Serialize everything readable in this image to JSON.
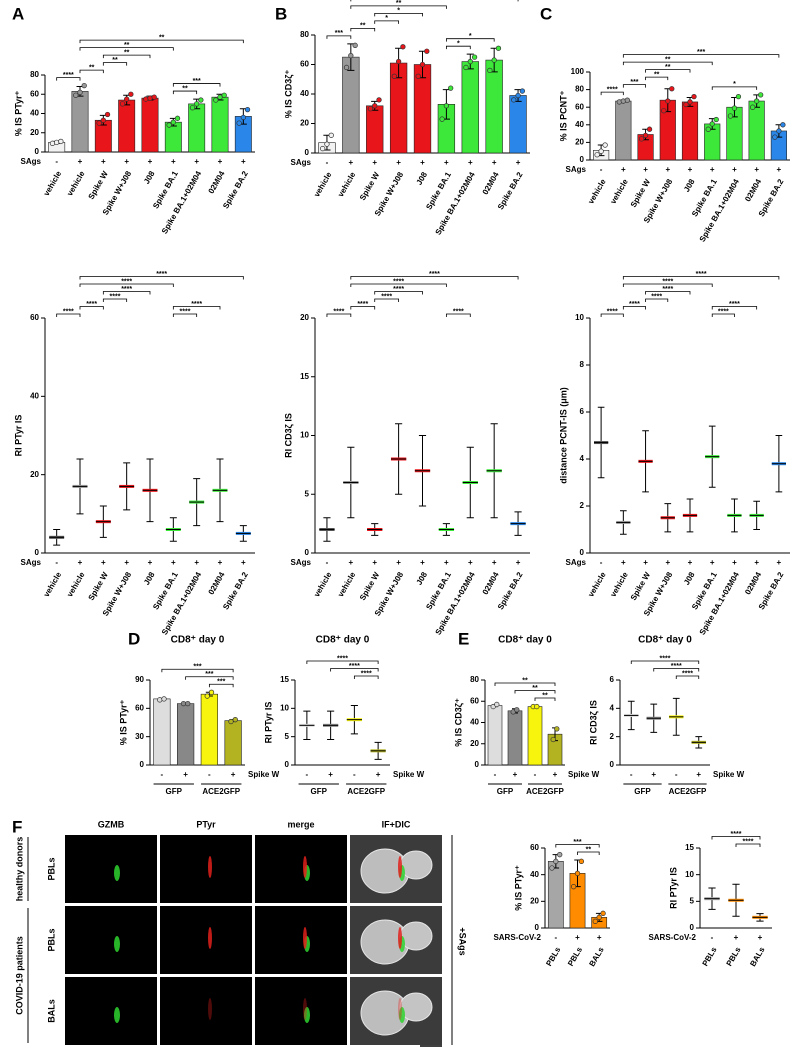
{
  "panel_labels": [
    "A",
    "B",
    "C",
    "D",
    "E",
    "F"
  ],
  "chart_data": [
    {
      "type": "bar",
      "ylabel": "% IS PTyr⁺",
      "ylim": [
        0,
        80
      ],
      "yticks": [
        0,
        20,
        40,
        60,
        80
      ],
      "condition": {
        "label": "SAgs",
        "position": "left",
        "values": [
          "-",
          "+",
          "+",
          "+",
          "+",
          "+",
          "+",
          "+",
          "+"
        ]
      },
      "categories": [
        "vehicle",
        "vehicle",
        "Spike W",
        "Spike W+J08",
        "J08",
        "Spike BA.1",
        "Spike BA.1+02M04",
        "02M04",
        "Spike BA.2"
      ],
      "colors": [
        "#f2f2f2",
        "#999999",
        "#e8161b",
        "#e8161b",
        "#e8161b",
        "#3ee83a",
        "#3ee83a",
        "#3ee83a",
        "#2a86e8"
      ],
      "values": [
        10,
        63,
        33,
        54,
        56,
        31,
        50,
        57,
        37
      ],
      "errors": [
        1,
        5,
        5,
        5,
        2,
        4,
        5,
        3,
        8
      ],
      "points": [
        [
          9,
          10,
          11
        ],
        [
          59,
          62,
          69
        ],
        [
          30,
          33,
          39
        ],
        [
          50,
          55,
          60
        ],
        [
          55,
          56,
          57
        ],
        [
          28,
          31,
          35
        ],
        [
          46,
          50,
          54
        ],
        [
          54,
          57,
          59
        ],
        [
          30,
          36,
          44
        ]
      ],
      "brackets": [
        {
          "from": 0,
          "to": 1,
          "label": "****"
        },
        {
          "from": 1,
          "to": 2,
          "label": "**"
        },
        {
          "from": 1,
          "to": 5,
          "label": "**"
        },
        {
          "from": 1,
          "to": 8,
          "label": "**"
        },
        {
          "from": 2,
          "to": 3,
          "label": "**"
        },
        {
          "from": 2,
          "to": 4,
          "label": "**"
        },
        {
          "from": 5,
          "to": 6,
          "label": "**"
        },
        {
          "from": 5,
          "to": 7,
          "label": "***"
        }
      ]
    },
    {
      "type": "bar",
      "ylabel": "% IS CD3ζ⁺",
      "ylim": [
        0,
        80
      ],
      "yticks": [
        0,
        20,
        40,
        60,
        80
      ],
      "condition": {
        "label": "SAgs",
        "position": "left",
        "values": [
          "-",
          "+",
          "+",
          "+",
          "+",
          "+",
          "+",
          "+",
          "+"
        ]
      },
      "categories": [
        "vehicle",
        "vehicle",
        "Spike W",
        "Spike W+J08",
        "J08",
        "Spike BA.1",
        "Spike BA.1+02M04",
        "02M04",
        "Spike BA.2"
      ],
      "colors": [
        "#f2f2f2",
        "#999999",
        "#e8161b",
        "#e8161b",
        "#e8161b",
        "#3ee83a",
        "#3ee83a",
        "#3ee83a",
        "#2a86e8"
      ],
      "values": [
        7,
        65,
        32,
        61,
        60,
        33,
        62,
        63,
        39
      ],
      "errors": [
        5,
        9,
        3,
        10,
        9,
        10,
        5,
        8,
        4
      ],
      "points": [
        [
          3,
          6,
          12
        ],
        [
          58,
          66,
          73
        ],
        [
          30,
          32,
          36
        ],
        [
          52,
          62,
          72
        ],
        [
          52,
          60,
          69
        ],
        [
          23,
          32,
          44
        ],
        [
          58,
          62,
          65
        ],
        [
          56,
          63,
          71
        ],
        [
          36,
          39,
          42
        ]
      ],
      "brackets": [
        {
          "from": 0,
          "to": 1,
          "label": "***"
        },
        {
          "from": 1,
          "to": 2,
          "label": "**"
        },
        {
          "from": 1,
          "to": 5,
          "label": "**"
        },
        {
          "from": 1,
          "to": 8,
          "label": "*"
        },
        {
          "from": 2,
          "to": 3,
          "label": "*"
        },
        {
          "from": 2,
          "to": 4,
          "label": "*"
        },
        {
          "from": 5,
          "to": 6,
          "label": "*"
        },
        {
          "from": 5,
          "to": 7,
          "label": "*"
        }
      ]
    },
    {
      "type": "bar",
      "ylabel": "% IS PCNT⁺",
      "ylim": [
        0,
        100
      ],
      "yticks": [
        0,
        20,
        40,
        60,
        80,
        100
      ],
      "condition": {
        "label": "SAgs",
        "position": "left",
        "values": [
          "-",
          "+",
          "+",
          "+",
          "+",
          "+",
          "+",
          "+",
          "+"
        ]
      },
      "categories": [
        "vehicle",
        "vehicle",
        "Spike W",
        "Spike W+J08",
        "J08",
        "Spike BA.1",
        "Spike BA.1+02M04",
        "02M04",
        "Spike BA.2"
      ],
      "colors": [
        "#f2f2f2",
        "#999999",
        "#e8161b",
        "#e8161b",
        "#e8161b",
        "#3ee83a",
        "#3ee83a",
        "#3ee83a",
        "#2a86e8"
      ],
      "values": [
        11,
        67,
        29,
        68,
        66,
        41,
        60,
        67,
        33
      ],
      "errors": [
        6,
        1,
        6,
        13,
        5,
        6,
        11,
        7,
        7
      ],
      "points": [
        [
          6,
          10,
          17
        ],
        [
          66,
          67,
          68
        ],
        [
          24,
          28,
          35
        ],
        [
          56,
          67,
          81
        ],
        [
          63,
          66,
          72
        ],
        [
          35,
          41,
          46
        ],
        [
          50,
          59,
          72
        ],
        [
          60,
          67,
          74
        ],
        [
          26,
          33,
          40
        ]
      ],
      "brackets": [
        {
          "from": 0,
          "to": 1,
          "label": "****"
        },
        {
          "from": 1,
          "to": 2,
          "label": "***"
        },
        {
          "from": 1,
          "to": 5,
          "label": "**"
        },
        {
          "from": 1,
          "to": 8,
          "label": "***"
        },
        {
          "from": 2,
          "to": 3,
          "label": "**"
        },
        {
          "from": 2,
          "to": 4,
          "label": "**"
        },
        {
          "from": 5,
          "to": 7,
          "label": "*"
        }
      ]
    },
    {
      "type": "dot",
      "ylabel": "RI PTyr IS",
      "ylim": [
        0,
        60
      ],
      "yticks": [
        0,
        20,
        40,
        60
      ],
      "condition": {
        "label": "SAgs",
        "position": "left",
        "values": [
          "-",
          "+",
          "+",
          "+",
          "+",
          "+",
          "+",
          "+",
          "+"
        ]
      },
      "categories": [
        "vehicle",
        "vehicle",
        "Spike W",
        "Spike W+J08",
        "J08",
        "Spike BA.1",
        "Spike BA.1+02M04",
        "02M04",
        "Spike BA.2"
      ],
      "colors": [
        "#f2f2f2",
        "#999999",
        "#e8161b",
        "#e8161b",
        "#e8161b",
        "#3ee83a",
        "#3ee83a",
        "#3ee83a",
        "#2a86e8"
      ],
      "values": [
        4,
        17,
        8,
        17,
        16,
        6,
        13,
        16,
        5
      ],
      "errors": [
        2,
        7,
        4,
        6,
        8,
        3,
        6,
        8,
        2
      ],
      "brackets": [
        {
          "from": 0,
          "to": 1,
          "label": "****"
        },
        {
          "from": 1,
          "to": 2,
          "label": "****"
        },
        {
          "from": 1,
          "to": 5,
          "label": "****"
        },
        {
          "from": 1,
          "to": 8,
          "label": "****"
        },
        {
          "from": 2,
          "to": 3,
          "label": "****"
        },
        {
          "from": 2,
          "to": 4,
          "label": "****"
        },
        {
          "from": 5,
          "to": 6,
          "label": "****"
        },
        {
          "from": 5,
          "to": 7,
          "label": "****"
        }
      ]
    },
    {
      "type": "dot",
      "ylabel": "RI CD3ζ IS",
      "ylim": [
        0,
        20
      ],
      "yticks": [
        0,
        5,
        10,
        15,
        20
      ],
      "condition": {
        "label": "SAgs",
        "position": "left",
        "values": [
          "-",
          "+",
          "+",
          "+",
          "+",
          "+",
          "+",
          "+",
          "+"
        ]
      },
      "categories": [
        "vehicle",
        "vehicle",
        "Spike W",
        "Spike W+J08",
        "J08",
        "Spike BA.1",
        "Spike BA.1+02M04",
        "02M04",
        "Spike BA.2"
      ],
      "colors": [
        "#f2f2f2",
        "#999999",
        "#e8161b",
        "#e8161b",
        "#e8161b",
        "#3ee83a",
        "#3ee83a",
        "#3ee83a",
        "#2a86e8"
      ],
      "values": [
        2,
        6,
        2,
        8,
        7,
        2,
        6,
        7,
        2.5
      ],
      "errors": [
        1,
        3,
        0.5,
        3,
        3,
        0.5,
        3,
        4,
        1
      ],
      "brackets": [
        {
          "from": 0,
          "to": 1,
          "label": "****"
        },
        {
          "from": 1,
          "to": 2,
          "label": "****"
        },
        {
          "from": 1,
          "to": 5,
          "label": "****"
        },
        {
          "from": 1,
          "to": 8,
          "label": "****"
        },
        {
          "from": 2,
          "to": 3,
          "label": "****"
        },
        {
          "from": 2,
          "to": 4,
          "label": "****"
        },
        {
          "from": 5,
          "to": 6,
          "label": "****"
        }
      ]
    },
    {
      "type": "dot",
      "ylabel": "distance PCNT-IS (μm)",
      "ylim": [
        0,
        10
      ],
      "yticks": [
        0,
        2,
        4,
        6,
        8,
        10
      ],
      "condition": {
        "label": "SAgs",
        "position": "left",
        "values": [
          "-",
          "+",
          "+",
          "+",
          "+",
          "+",
          "+",
          "+",
          "+"
        ]
      },
      "categories": [
        "vehicle",
        "vehicle",
        "Spike W",
        "Spike W+J08",
        "J08",
        "Spike BA.1",
        "Spike BA.1+02M04",
        "02M04",
        "Spike BA.2"
      ],
      "colors": [
        "#f2f2f2",
        "#999999",
        "#e8161b",
        "#e8161b",
        "#e8161b",
        "#3ee83a",
        "#3ee83a",
        "#3ee83a",
        "#2a86e8"
      ],
      "values": [
        4.7,
        1.3,
        3.9,
        1.5,
        1.6,
        4.1,
        1.6,
        1.6,
        3.8
      ],
      "errors": [
        1.5,
        0.5,
        1.3,
        0.6,
        0.7,
        1.3,
        0.7,
        0.6,
        1.2
      ],
      "brackets": [
        {
          "from": 0,
          "to": 1,
          "label": "****"
        },
        {
          "from": 1,
          "to": 2,
          "label": "****"
        },
        {
          "from": 1,
          "to": 5,
          "label": "****"
        },
        {
          "from": 1,
          "to": 8,
          "label": "****"
        },
        {
          "from": 2,
          "to": 3,
          "label": "****"
        },
        {
          "from": 2,
          "to": 4,
          "label": "****"
        },
        {
          "from": 5,
          "to": 6,
          "label": "****"
        },
        {
          "from": 5,
          "to": 7,
          "label": "****"
        }
      ]
    },
    {
      "type": "bar",
      "title": "CD8⁺ day 0",
      "ylabel": "% IS PTyr⁺",
      "ylim": [
        0,
        90
      ],
      "yticks": [
        0,
        30,
        60,
        90
      ],
      "condition": {
        "label": "Spike W",
        "position": "right",
        "values": [
          "-",
          "+",
          "-",
          "+"
        ]
      },
      "groups": [
        {
          "label": "GFP",
          "from": 0,
          "to": 1
        },
        {
          "label": "ACE2GFP",
          "from": 2,
          "to": 3
        }
      ],
      "colors": [
        "#dddddd",
        "#888888",
        "#f7f40d",
        "#b3b322"
      ],
      "values": [
        70,
        65,
        75,
        47
      ],
      "errors": [
        0.5,
        0.5,
        2,
        1
      ],
      "points": [
        [
          69,
          70
        ],
        [
          65,
          65
        ],
        [
          73,
          77
        ],
        [
          46,
          48
        ]
      ],
      "brackets": [
        {
          "from": 0,
          "to": 3,
          "label": "***"
        },
        {
          "from": 1,
          "to": 3,
          "label": "***"
        },
        {
          "from": 2,
          "to": 3,
          "label": "***"
        }
      ]
    },
    {
      "type": "dot",
      "title": "CD8⁺ day 0",
      "ylabel": "RI PTyr IS",
      "ylim": [
        0,
        15
      ],
      "yticks": [
        0,
        5,
        10,
        15
      ],
      "condition": {
        "label": "Spike W",
        "position": "right",
        "values": [
          "-",
          "+",
          "-",
          "+"
        ]
      },
      "groups": [
        {
          "label": "GFP",
          "from": 0,
          "to": 1
        },
        {
          "label": "ACE2GFP",
          "from": 2,
          "to": 3
        }
      ],
      "colors": [
        "#dddddd",
        "#888888",
        "#f7f40d",
        "#b3b322"
      ],
      "values": [
        7,
        7,
        8,
        2.5
      ],
      "errors": [
        2.5,
        2.5,
        2.5,
        1.5
      ],
      "brackets": [
        {
          "from": 0,
          "to": 3,
          "label": "****"
        },
        {
          "from": 1,
          "to": 3,
          "label": "****"
        },
        {
          "from": 2,
          "to": 3,
          "label": "****"
        }
      ]
    },
    {
      "type": "bar",
      "title": "CD8⁺ day 0",
      "ylabel": "% IS CD3ζ⁺",
      "ylim": [
        0,
        80
      ],
      "yticks": [
        0,
        20,
        40,
        60,
        80
      ],
      "condition": {
        "label": "Spike W",
        "position": "right",
        "values": [
          "-",
          "+",
          "-",
          "+"
        ]
      },
      "groups": [
        {
          "label": "GFP",
          "from": 0,
          "to": 1
        },
        {
          "label": "ACE2GFP",
          "from": 2,
          "to": 3
        }
      ],
      "colors": [
        "#dddddd",
        "#888888",
        "#f7f40d",
        "#b3b322"
      ],
      "values": [
        56,
        51,
        55,
        29
      ],
      "errors": [
        1,
        2,
        0.5,
        6
      ],
      "points": [
        [
          55,
          57
        ],
        [
          50,
          52
        ],
        [
          55,
          55
        ],
        [
          24,
          34
        ]
      ],
      "brackets": [
        {
          "from": 0,
          "to": 3,
          "label": "**"
        },
        {
          "from": 1,
          "to": 3,
          "label": "**"
        },
        {
          "from": 2,
          "to": 3,
          "label": "**"
        }
      ]
    },
    {
      "type": "dot",
      "title": "CD8⁺ day 0",
      "ylabel": "RI CD3ζ IS",
      "ylim": [
        0,
        6
      ],
      "yticks": [
        0,
        2,
        4,
        6
      ],
      "condition": {
        "label": "Spike W",
        "position": "right",
        "values": [
          "-",
          "+",
          "-",
          "+"
        ]
      },
      "groups": [
        {
          "label": "GFP",
          "from": 0,
          "to": 1
        },
        {
          "label": "ACE2GFP",
          "from": 2,
          "to": 3
        }
      ],
      "colors": [
        "#dddddd",
        "#888888",
        "#f7f40d",
        "#b3b322"
      ],
      "values": [
        3.5,
        3.3,
        3.4,
        1.6
      ],
      "errors": [
        1,
        1,
        1.3,
        0.4
      ],
      "brackets": [
        {
          "from": 0,
          "to": 3,
          "label": "****"
        },
        {
          "from": 1,
          "to": 3,
          "label": "****"
        },
        {
          "from": 2,
          "to": 3,
          "label": "****"
        }
      ]
    },
    {
      "type": "bar",
      "ylabel": "% IS PTyr⁺",
      "ylim": [
        0,
        60
      ],
      "yticks": [
        0,
        20,
        40,
        60
      ],
      "condition": {
        "label": "SARS-CoV-2",
        "position": "left",
        "values": [
          "-",
          "+",
          "+"
        ]
      },
      "categories": [
        "PBLs",
        "PBLs",
        "BALs"
      ],
      "colors": [
        "#a6a6a6",
        "#ff8c00",
        "#ff8c00"
      ],
      "values": [
        50,
        41,
        8
      ],
      "errors": [
        5,
        10,
        3
      ],
      "points": [
        [
          45,
          50,
          55
        ],
        [
          31,
          41,
          50
        ],
        [
          5,
          8,
          11
        ]
      ],
      "brackets": [
        {
          "from": 0,
          "to": 2,
          "label": "***"
        },
        {
          "from": 1,
          "to": 2,
          "label": "**"
        }
      ]
    },
    {
      "type": "dot",
      "ylabel": "RI PTyr IS",
      "ylim": [
        0,
        15
      ],
      "yticks": [
        0,
        5,
        10,
        15
      ],
      "condition": {
        "label": "SARS-CoV-2",
        "position": "left",
        "values": [
          "-",
          "+",
          "+"
        ]
      },
      "categories": [
        "PBLs",
        "PBLs",
        "BALs"
      ],
      "colors": [
        "#a6a6a6",
        "#ff8c00",
        "#ff8c00"
      ],
      "values": [
        5.5,
        5.2,
        2
      ],
      "errors": [
        2,
        3,
        0.7
      ],
      "brackets": [
        {
          "from": 0,
          "to": 2,
          "label": "****"
        },
        {
          "from": 1,
          "to": 2,
          "label": "****"
        }
      ]
    }
  ],
  "microscopy": {
    "columns": [
      "GZMB",
      "PTyr",
      "merge",
      "IF+DIC"
    ],
    "groups": [
      {
        "label": "healthy donors",
        "rows": [
          "PBLs"
        ]
      },
      {
        "label": "COVID-19 patients",
        "rows": [
          "PBLs",
          "BALs"
        ]
      }
    ],
    "condition": "+SAgs"
  }
}
